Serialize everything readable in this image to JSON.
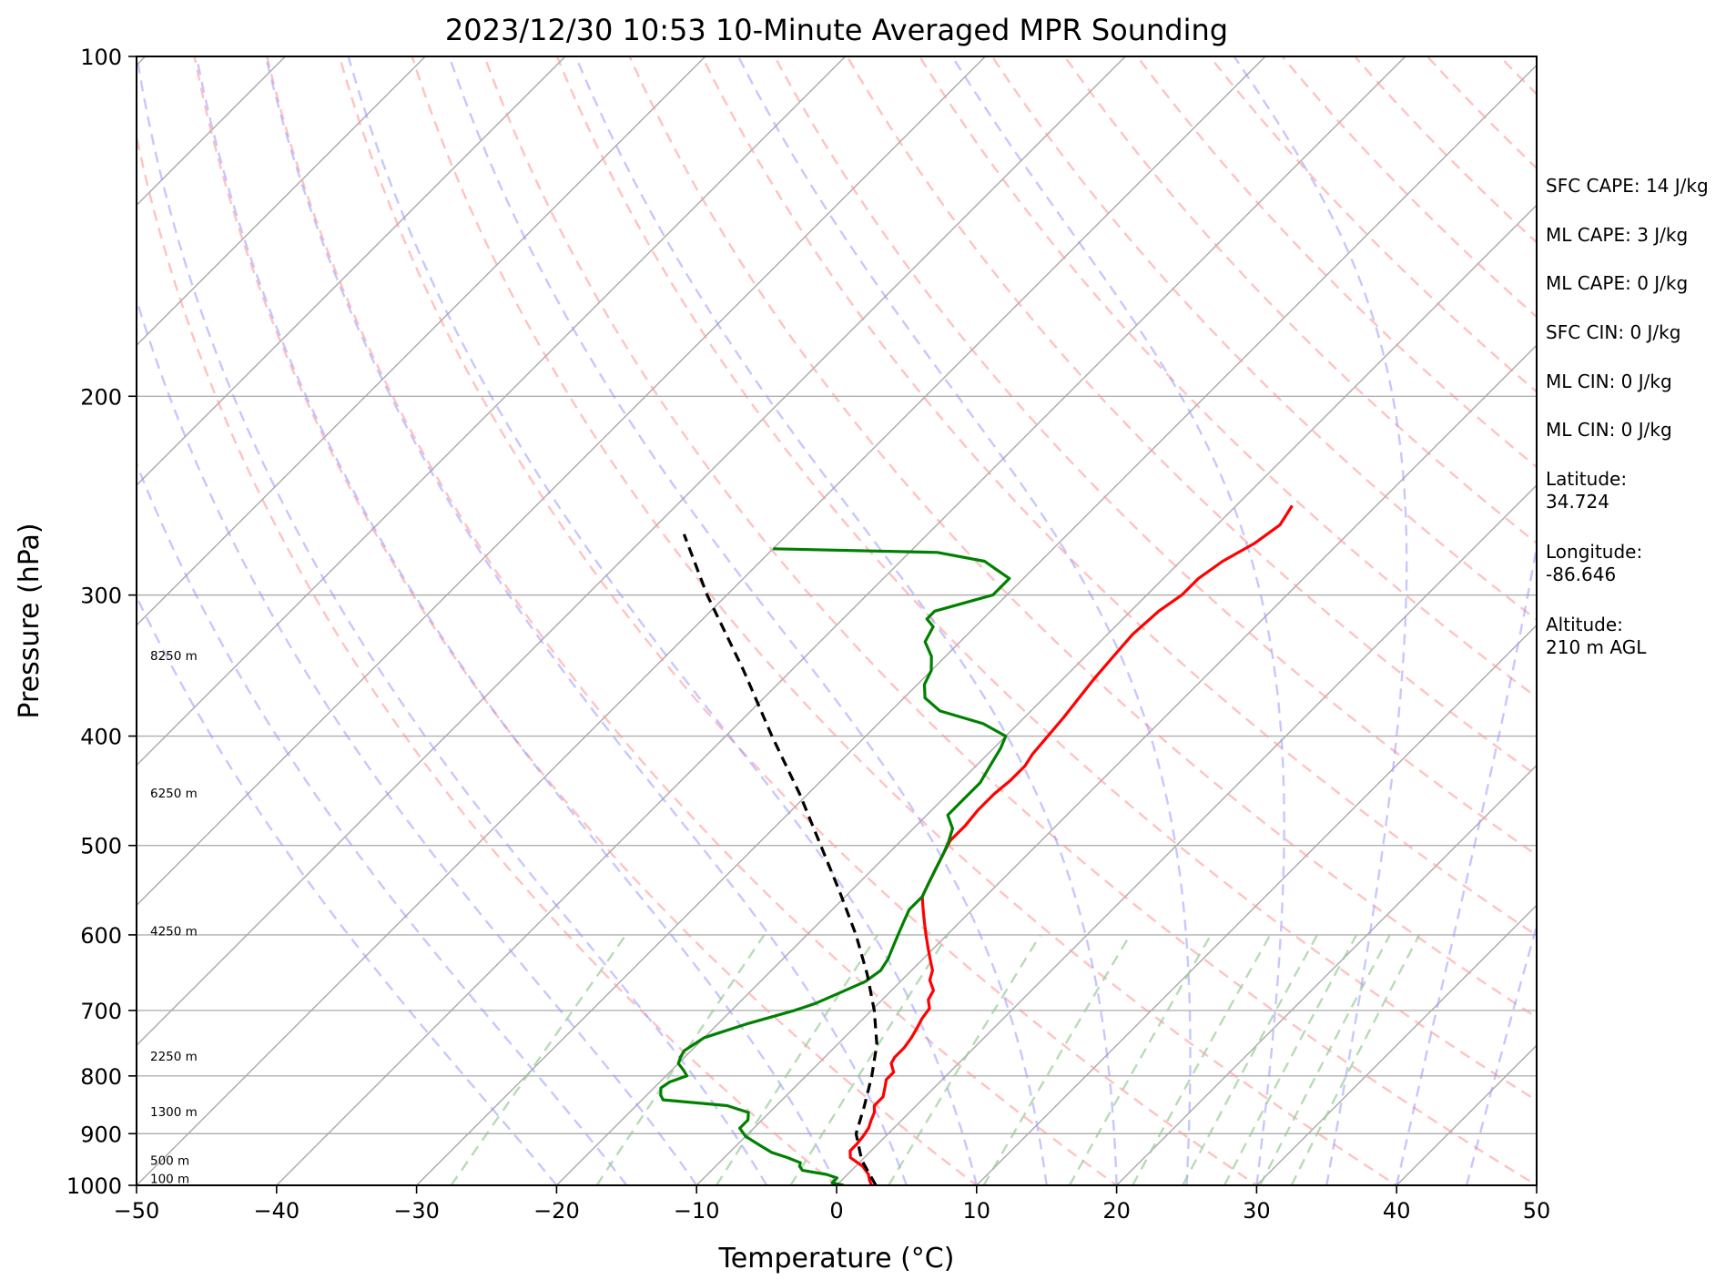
{
  "chart_data": {
    "type": "line",
    "title": "2023/12/30 10:53 10-Minute Averaged MPR Sounding",
    "xlabel": "Temperature (°C)",
    "ylabel": "Pressure (hPa)",
    "xlim": [
      -50,
      50
    ],
    "ylim": [
      1000,
      100
    ],
    "y_scale": "log",
    "x_ticks": [
      "−50",
      "−40",
      "−30",
      "−20",
      "−10",
      "0",
      "10",
      "20",
      "30",
      "40",
      "50"
    ],
    "y_ticks": [
      {
        "p": 100,
        "label": "100"
      },
      {
        "p": 200,
        "label": "200"
      },
      {
        "p": 300,
        "label": "300"
      },
      {
        "p": 400,
        "label": "400"
      },
      {
        "p": 500,
        "label": "500"
      },
      {
        "p": 600,
        "label": "600"
      },
      {
        "p": 700,
        "label": "700"
      },
      {
        "p": 800,
        "label": "800"
      },
      {
        "p": 900,
        "label": "900"
      },
      {
        "p": 1000,
        "label": "1000"
      }
    ],
    "height_labels": [
      {
        "p": 988,
        "label": "100 m"
      },
      {
        "p": 952,
        "label": "500 m"
      },
      {
        "p": 862,
        "label": "1300 m"
      },
      {
        "p": 770,
        "label": "2250 m"
      },
      {
        "p": 596,
        "label": "4250 m"
      },
      {
        "p": 450,
        "label": "6250 m"
      },
      {
        "p": 340,
        "label": "8250 m"
      }
    ],
    "series": [
      {
        "role": "temperature",
        "color": "#ff0000",
        "p": [
          1000,
          990,
          978,
          962,
          945,
          932,
          920,
          905,
          890,
          875,
          862,
          850,
          835,
          820,
          806,
          794,
          780,
          770,
          755,
          740,
          725,
          712,
          697,
          685,
          672,
          658,
          645,
          630,
          615,
          600,
          585,
          570,
          555,
          540,
          525,
          510,
          495,
          480,
          465,
          450,
          438,
          425,
          415,
          400,
          385,
          370,
          355,
          340,
          325,
          310,
          300,
          290,
          280,
          270,
          260,
          250
        ],
        "t": [
          2.5,
          2,
          1.5,
          0.5,
          -1,
          -1.5,
          -1.5,
          -1.6,
          -1.8,
          -2.2,
          -2.5,
          -3,
          -3,
          -3.5,
          -4,
          -4,
          -4.8,
          -5,
          -5,
          -5.2,
          -5.5,
          -5.8,
          -6,
          -6.7,
          -7,
          -8,
          -8.5,
          -9.5,
          -10.5,
          -11.5,
          -12.5,
          -13.5,
          -14.5,
          -15,
          -15.5,
          -16,
          -16.5,
          -16.5,
          -16.7,
          -16.7,
          -16.5,
          -16.5,
          -16.8,
          -17,
          -17.2,
          -17.5,
          -17.8,
          -18,
          -18.2,
          -18,
          -17.5,
          -17.5,
          -17,
          -16,
          -15.5,
          -16
        ]
      },
      {
        "role": "dewpoint",
        "color": "#008000",
        "p": [
          1000,
          995,
          985,
          978,
          970,
          962,
          955,
          945,
          935,
          920,
          905,
          890,
          875,
          862,
          850,
          840,
          832,
          820,
          810,
          800,
          790,
          780,
          770,
          760,
          740,
          720,
          700,
          690,
          675,
          660,
          645,
          630,
          615,
          600,
          585,
          570,
          555,
          540,
          525,
          510,
          497,
          483,
          470,
          455,
          440,
          425,
          410,
          400,
          390,
          380,
          370,
          360,
          350,
          340,
          330,
          320,
          315,
          310,
          300,
          290,
          285,
          280,
          275,
          273
        ],
        "t": [
          0.5,
          -0.5,
          -0.5,
          -1.5,
          -3.5,
          -4,
          -4.2,
          -5.5,
          -7,
          -8.5,
          -10,
          -11,
          -11,
          -11.5,
          -13.5,
          -18.5,
          -19,
          -19.5,
          -19.3,
          -18.5,
          -19.2,
          -20,
          -20.3,
          -20.5,
          -20,
          -18,
          -15.5,
          -14.5,
          -13.5,
          -12.5,
          -12.2,
          -12.5,
          -13,
          -13.5,
          -14,
          -14.5,
          -14.5,
          -15,
          -15.5,
          -16,
          -16.5,
          -17.2,
          -18.5,
          -18.5,
          -18.5,
          -19,
          -19.5,
          -20,
          -22.5,
          -26.5,
          -28.5,
          -29.5,
          -30,
          -31,
          -32.5,
          -33,
          -34,
          -34,
          -31,
          -31,
          -32.5,
          -34,
          -38,
          -50
        ]
      },
      {
        "role": "parcel",
        "color": "#000000",
        "dash": "dashed",
        "p": [
          1000,
          950,
          900,
          850,
          800,
          750,
          700,
          650,
          600,
          550,
          500,
          450,
          400,
          350,
          300,
          265
        ],
        "t": [
          2.8,
          0,
          -2.3,
          -3.7,
          -5.3,
          -7.2,
          -9.8,
          -12.9,
          -16.5,
          -20.7,
          -25.4,
          -30.6,
          -36.7,
          -43.4,
          -51.4,
          -57.4
        ]
      }
    ],
    "reference_lines": {
      "isotherms_color": "#a9a9a9",
      "dry_adiabats_color": "#ff9999",
      "moist_adiabats_color": "#9999ff",
      "mixing_ratio_color": "#99cc99",
      "isotherm_values": [
        -150,
        -140,
        -130,
        -120,
        -110,
        -100,
        -90,
        -80,
        -70,
        -60,
        -50,
        -40,
        -30,
        -20,
        -10,
        0,
        10,
        20,
        30,
        40,
        50
      ],
      "dry_adiabat_thetas": [
        0,
        10,
        20,
        30,
        40,
        50,
        60,
        70,
        80,
        90,
        100,
        110,
        120,
        130,
        140,
        150,
        160,
        170,
        180,
        190,
        200
      ],
      "moist_adiabat_starts": [
        -20,
        -15,
        -10,
        -5,
        0,
        5,
        10,
        15,
        20,
        25,
        30,
        35,
        40,
        45
      ],
      "mixing_ratios": [
        0.4,
        1,
        2,
        3,
        5,
        8,
        12,
        16,
        20,
        24,
        28,
        32
      ]
    },
    "grid": true
  },
  "info_panel": [
    "SFC CAPE: 14 J/kg",
    "ML CAPE: 3 J/kg",
    "ML CAPE: 0 J/kg",
    "SFC CIN: 0 J/kg",
    "ML CIN: 0 J/kg",
    "ML CIN: 0 J/kg",
    "Latitude:",
    "34.724",
    "Longitude:",
    "-86.646",
    "Altitude:",
    "210 m AGL"
  ]
}
